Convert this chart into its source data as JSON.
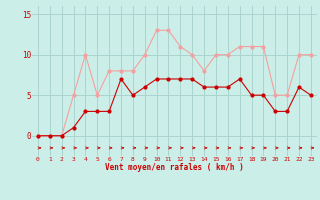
{
  "x": [
    0,
    1,
    2,
    3,
    4,
    5,
    6,
    7,
    8,
    9,
    10,
    11,
    12,
    13,
    14,
    15,
    16,
    17,
    18,
    19,
    20,
    21,
    22,
    23
  ],
  "rafales": [
    0,
    0,
    0,
    5,
    10,
    5,
    8,
    8,
    8,
    10,
    13,
    13,
    11,
    10,
    8,
    10,
    10,
    11,
    11,
    11,
    5,
    5,
    10,
    10
  ],
  "moyen": [
    0,
    0,
    0,
    1,
    3,
    3,
    3,
    7,
    5,
    6,
    7,
    7,
    7,
    7,
    6,
    6,
    6,
    7,
    5,
    5,
    3,
    3,
    6,
    5
  ],
  "bg_color": "#cceee8",
  "grid_color": "#aad4ce",
  "line_color_rafales": "#f4a0a0",
  "line_color_moyen": "#cc0000",
  "xlabel": "Vent moyen/en rafales ( km/h )",
  "xlabel_color": "#cc0000",
  "tick_color": "#cc0000",
  "ylabel_vals": [
    0,
    5,
    10,
    15
  ],
  "ylim": [
    -2.5,
    16
  ],
  "xlim": [
    -0.5,
    23.5
  ]
}
